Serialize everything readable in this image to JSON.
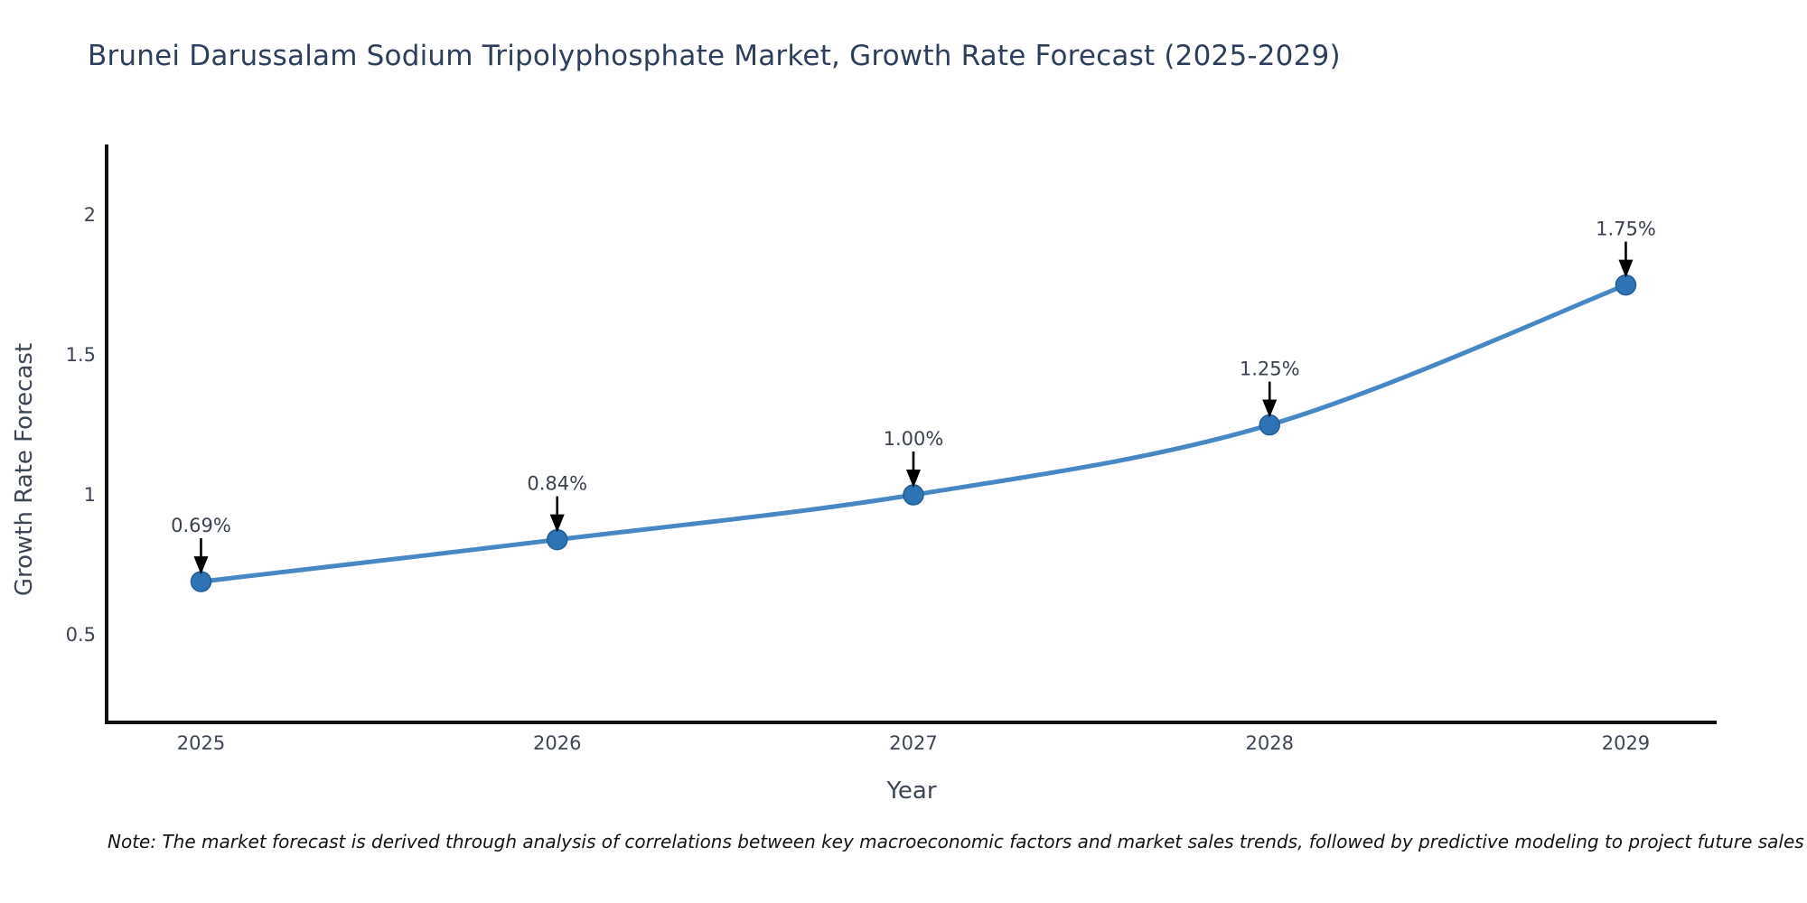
{
  "title": "Brunei Darussalam Sodium Tripolyphosphate Market, Growth Rate Forecast (2025-2029)",
  "note": "Note: The market forecast is derived through analysis of correlations between key macroeconomic factors and market sales trends, followed by predictive modeling to project future sales",
  "chart_data": {
    "type": "line",
    "title": "Brunei Darussalam Sodium Tripolyphosphate Market, Growth Rate Forecast (2025-2029)",
    "xlabel": "Year",
    "ylabel": "Growth Rate Forecast",
    "x": [
      2025,
      2026,
      2027,
      2028,
      2029
    ],
    "series": [
      {
        "name": "Growth Rate Forecast",
        "values": [
          0.69,
          0.84,
          1.0,
          1.25,
          1.75
        ]
      }
    ],
    "point_labels": [
      "0.69%",
      "0.84%",
      "1.00%",
      "1.25%",
      "1.75%"
    ],
    "annotation_style": "down-arrow",
    "xticks": [
      2025,
      2026,
      2027,
      2028,
      2029
    ],
    "yticks": [
      0.5,
      1,
      1.5,
      2
    ],
    "xlim": [
      2024.735,
      2029.255
    ],
    "ylim": [
      0.187,
      2.252
    ],
    "grid": false,
    "legend": "none",
    "line_shape": "smooth"
  },
  "colors": {
    "line": "#4788c4",
    "marker": "#2e74b5",
    "marker_edge": "#235d92",
    "arrow": "#000000",
    "spine": "#111111",
    "title_text": "#2e3f5c",
    "axis_text": "#3d4654",
    "annotation_text": "#3a4250",
    "note_text": "#141414",
    "background": "#ffffff"
  }
}
